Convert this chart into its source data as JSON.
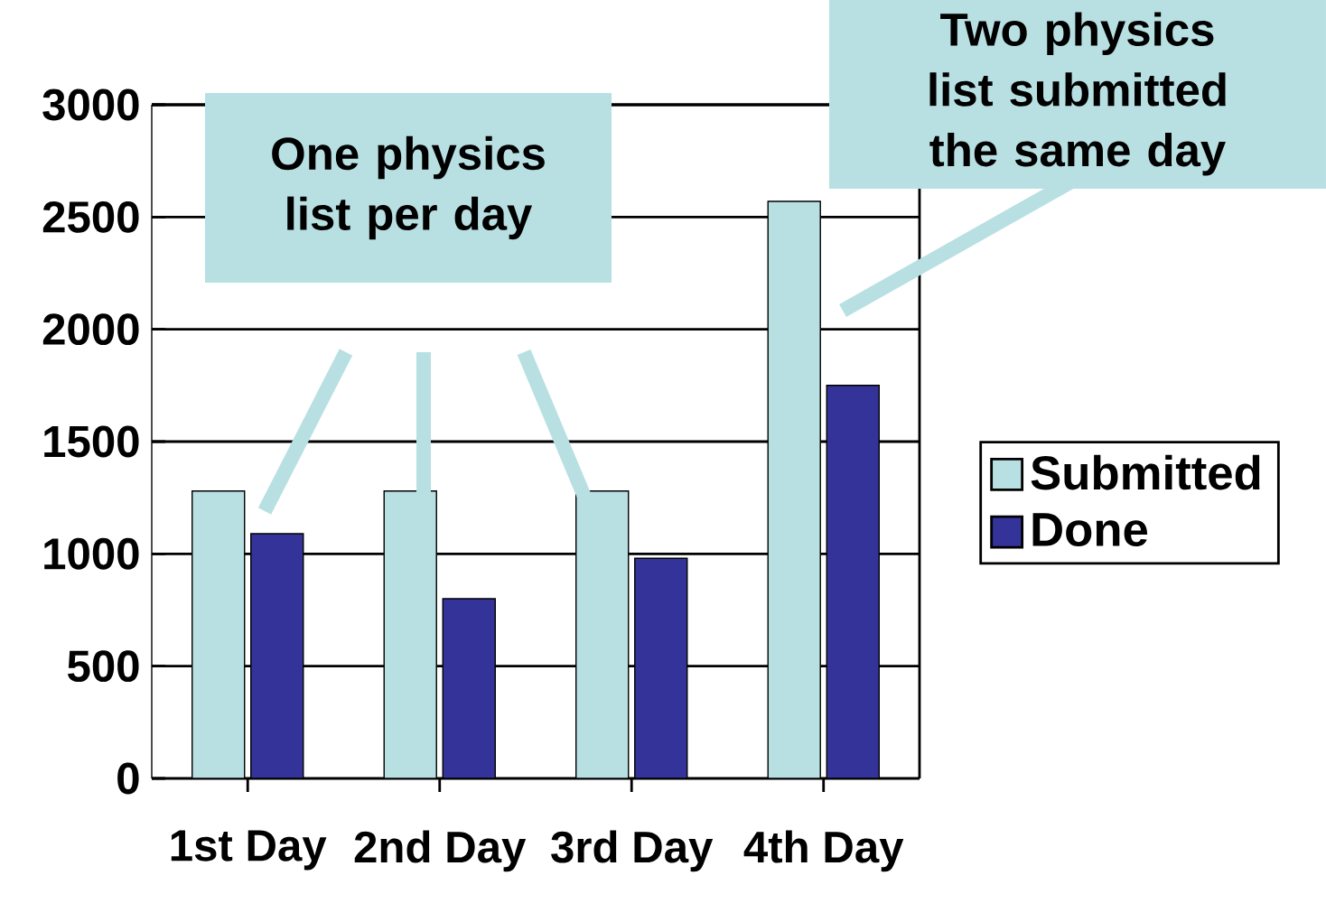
{
  "chart_data": {
    "type": "bar",
    "categories": [
      "1st Day",
      "2nd Day",
      "3rd Day",
      "4th Day"
    ],
    "series": [
      {
        "name": "Submitted",
        "color": "#b8e0e3",
        "values": [
          1280,
          1280,
          1280,
          2570
        ]
      },
      {
        "name": "Done",
        "color": "#333399",
        "values": [
          1090,
          800,
          980,
          1750
        ]
      }
    ],
    "ylim": [
      0,
      3000
    ],
    "yticks": [
      0,
      500,
      1000,
      1500,
      2000,
      2500,
      3000
    ],
    "grid": "y",
    "legend": "right",
    "annotations": [
      "One physics list per day",
      "Two physics list submitted the same day"
    ]
  }
}
